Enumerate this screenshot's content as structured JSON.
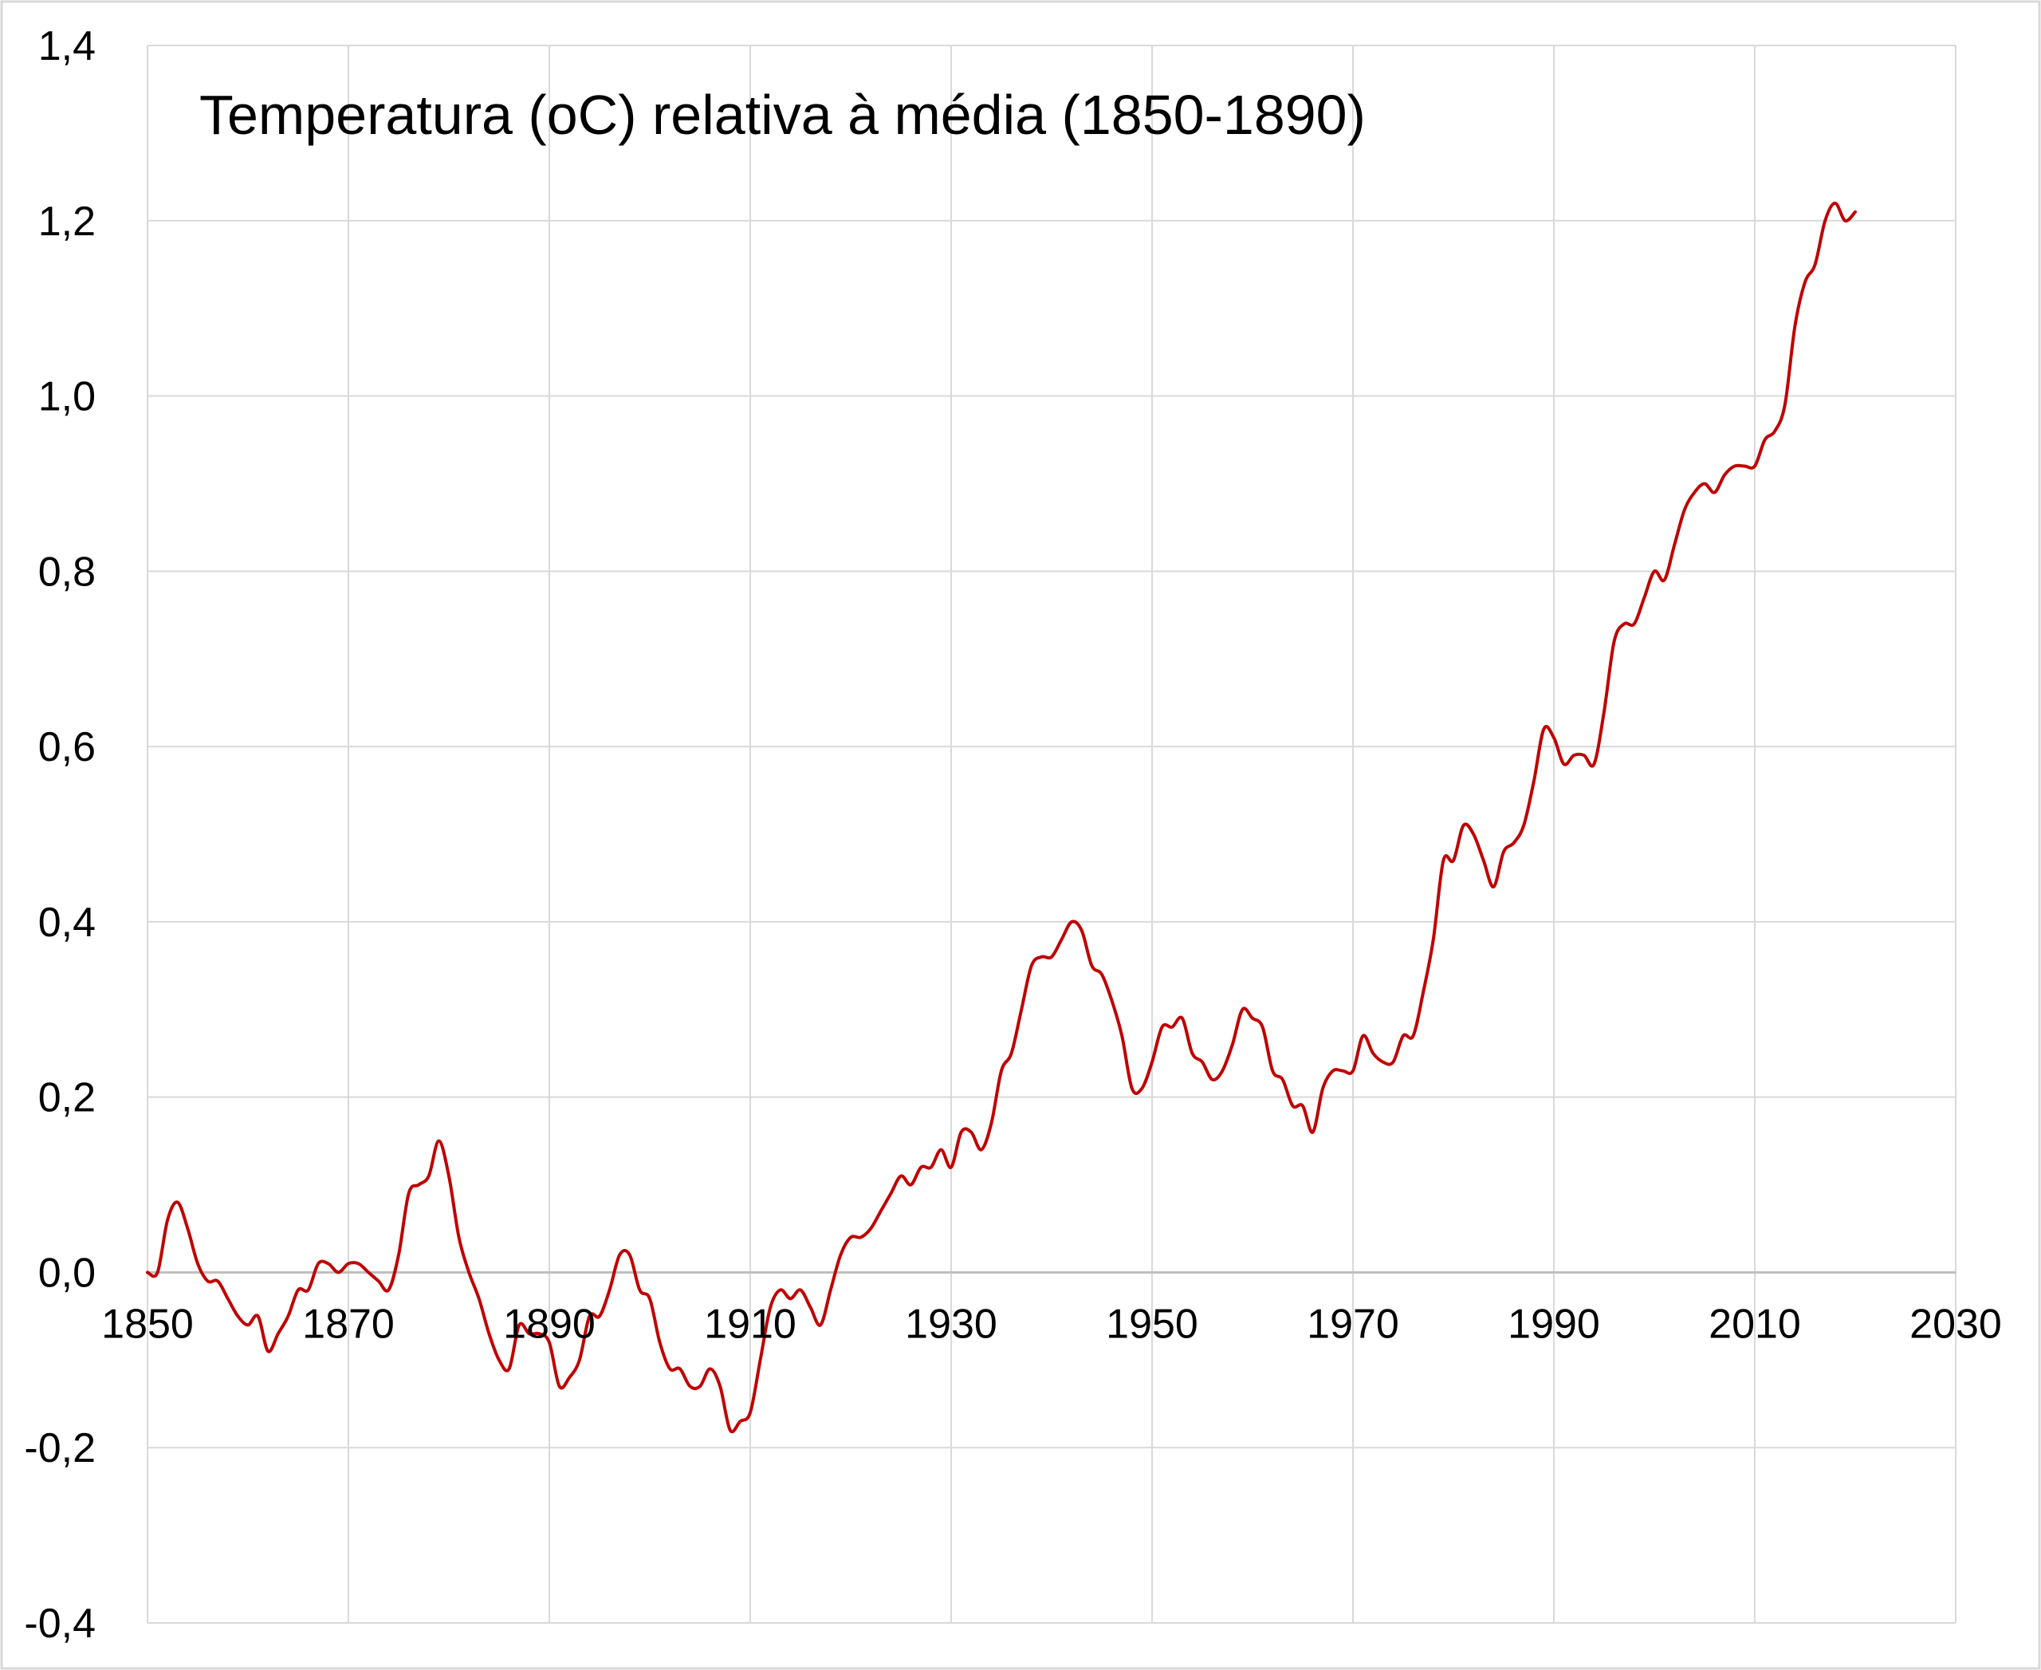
{
  "chart_data": {
    "type": "line",
    "title": "Temperatura (oC) relativa à média (1850-1890)",
    "xlabel": "",
    "ylabel": "",
    "xlim": [
      1850,
      2030
    ],
    "ylim": [
      -0.4,
      1.4
    ],
    "x_ticks": [
      1850,
      1870,
      1890,
      1910,
      1930,
      1950,
      1970,
      1990,
      2010,
      2030
    ],
    "x_tick_labels": [
      "1850",
      "1870",
      "1890",
      "1910",
      "1930",
      "1950",
      "1970",
      "1990",
      "2010",
      "2030"
    ],
    "y_ticks": [
      -0.4,
      -0.2,
      0.0,
      0.2,
      0.4,
      0.6,
      0.8,
      1.0,
      1.2,
      1.4
    ],
    "y_tick_labels": [
      "-0,4",
      "-0,2",
      "0,0",
      "0,2",
      "0,4",
      "0,6",
      "0,8",
      "1,0",
      "1,2",
      "1,4"
    ],
    "grid": true,
    "legend": "none",
    "line_color": "#C00000",
    "series": [
      {
        "x": [
          1850,
          1851,
          1852,
          1853,
          1854,
          1855,
          1856,
          1857,
          1858,
          1859,
          1860,
          1861,
          1862,
          1863,
          1864,
          1865,
          1866,
          1867,
          1868,
          1869,
          1870,
          1871,
          1872,
          1873,
          1874,
          1875,
          1876,
          1877,
          1878,
          1879,
          1880,
          1881,
          1882,
          1883,
          1884,
          1885,
          1886,
          1887,
          1888,
          1889,
          1890,
          1891,
          1892,
          1893,
          1894,
          1895,
          1896,
          1897,
          1898,
          1899,
          1900,
          1901,
          1902,
          1903,
          1904,
          1905,
          1906,
          1907,
          1908,
          1909,
          1910,
          1911,
          1912,
          1913,
          1914,
          1915,
          1916,
          1917,
          1918,
          1919,
          1920,
          1921,
          1922,
          1923,
          1924,
          1925,
          1926,
          1927,
          1928,
          1929,
          1930,
          1931,
          1932,
          1933,
          1934,
          1935,
          1936,
          1937,
          1938,
          1939,
          1940,
          1941,
          1942,
          1943,
          1944,
          1945,
          1946,
          1947,
          1948,
          1949,
          1950,
          1951,
          1952,
          1953,
          1954,
          1955,
          1956,
          1957,
          1958,
          1959,
          1960,
          1961,
          1962,
          1963,
          1964,
          1965,
          1966,
          1967,
          1968,
          1969,
          1970,
          1971,
          1972,
          1973,
          1974,
          1975,
          1976,
          1977,
          1978,
          1979,
          1980,
          1981,
          1982,
          1983,
          1984,
          1985,
          1986,
          1987,
          1988,
          1989,
          1990,
          1991,
          1992,
          1993,
          1994,
          1995,
          1996,
          1997,
          1998,
          1999,
          2000,
          2001,
          2002,
          2003,
          2004,
          2005,
          2006,
          2007,
          2008,
          2009,
          2010,
          2011,
          2012,
          2013,
          2014,
          2015,
          2016,
          2017,
          2018,
          2019,
          2020
        ],
        "values": [
          0.0,
          0.0,
          0.06,
          0.08,
          0.05,
          0.01,
          -0.01,
          -0.01,
          -0.03,
          -0.05,
          -0.06,
          -0.05,
          -0.09,
          -0.07,
          -0.05,
          -0.02,
          -0.02,
          0.01,
          0.01,
          0.0,
          0.01,
          0.01,
          0.0,
          -0.01,
          -0.02,
          0.02,
          0.09,
          0.1,
          0.11,
          0.15,
          0.11,
          0.04,
          0.0,
          -0.03,
          -0.07,
          -0.1,
          -0.11,
          -0.06,
          -0.07,
          -0.07,
          -0.08,
          -0.13,
          -0.12,
          -0.1,
          -0.05,
          -0.05,
          -0.02,
          0.02,
          0.02,
          -0.02,
          -0.03,
          -0.08,
          -0.11,
          -0.11,
          -0.13,
          -0.13,
          -0.11,
          -0.13,
          -0.18,
          -0.17,
          -0.16,
          -0.1,
          -0.04,
          -0.02,
          -0.03,
          -0.02,
          -0.04,
          -0.06,
          -0.02,
          0.02,
          0.04,
          0.04,
          0.05,
          0.07,
          0.09,
          0.11,
          0.1,
          0.12,
          0.12,
          0.14,
          0.12,
          0.16,
          0.16,
          0.14,
          0.17,
          0.23,
          0.25,
          0.3,
          0.35,
          0.36,
          0.36,
          0.38,
          0.4,
          0.39,
          0.35,
          0.34,
          0.31,
          0.27,
          0.21,
          0.21,
          0.24,
          0.28,
          0.28,
          0.29,
          0.25,
          0.24,
          0.22,
          0.23,
          0.26,
          0.3,
          0.29,
          0.28,
          0.23,
          0.22,
          0.19,
          0.19,
          0.16,
          0.21,
          0.23,
          0.23,
          0.23,
          0.27,
          0.25,
          0.24,
          0.24,
          0.27,
          0.27,
          0.32,
          0.38,
          0.47,
          0.47,
          0.51,
          0.5,
          0.47,
          0.44,
          0.48,
          0.49,
          0.51,
          0.56,
          0.62,
          0.61,
          0.58,
          0.59,
          0.59,
          0.58,
          0.64,
          0.72,
          0.74,
          0.74,
          0.77,
          0.8,
          0.79,
          0.83,
          0.87,
          0.89,
          0.9,
          0.89,
          0.91,
          0.92,
          0.92,
          0.92,
          0.95,
          0.96,
          0.99,
          1.08,
          1.13,
          1.15,
          1.2,
          1.22,
          1.2,
          1.21
        ]
      }
    ]
  }
}
